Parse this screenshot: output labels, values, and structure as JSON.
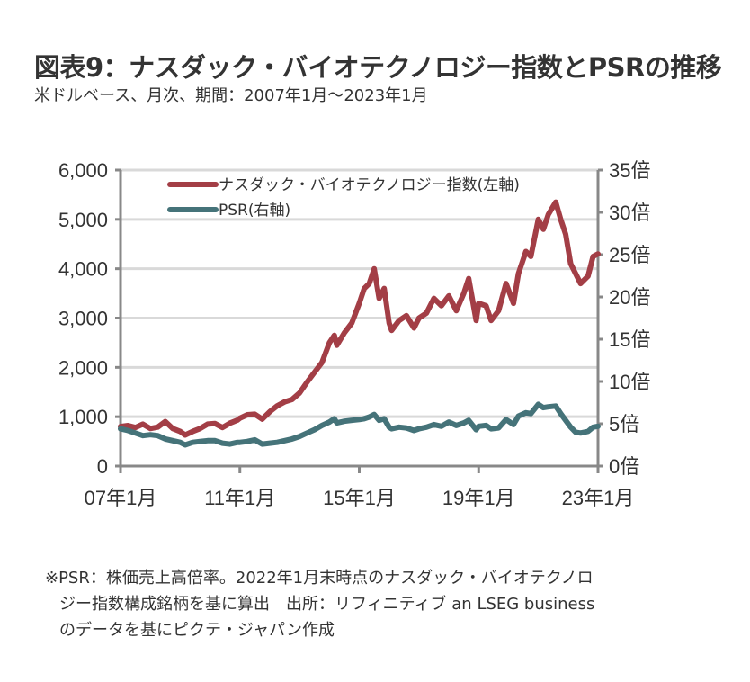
{
  "header": {
    "title": "図表9：ナスダック・バイオテクノロジー指数とPSRの推移",
    "subtitle": "米ドルベース、月次、期間：2007年1月～2023年1月"
  },
  "chart_data": {
    "type": "line",
    "title": "図表9：ナスダック・バイオテクノロジー指数とPSRの推移",
    "subtitle": "米ドルベース、月次、期間：2007年1月～2023年1月",
    "xlabel": "",
    "ylabel_left": "",
    "ylabel_right": "",
    "x_start": "2007-01",
    "x_end": "2023-01",
    "x_ticks": [
      "07年1月",
      "11年1月",
      "15年1月",
      "19年1月",
      "23年1月"
    ],
    "x_tick_months": [
      0,
      48,
      96,
      144,
      192
    ],
    "y_left_ticks": [
      "0",
      "1,000",
      "2,000",
      "3,000",
      "4,000",
      "5,000",
      "6,000"
    ],
    "y_left_tick_values": [
      0,
      1000,
      2000,
      3000,
      4000,
      5000,
      6000
    ],
    "ylim_left": [
      0,
      6000
    ],
    "y_right_ticks": [
      "0倍",
      "5倍",
      "10倍",
      "15倍",
      "20倍",
      "25倍",
      "30倍",
      "35倍"
    ],
    "y_right_tick_values": [
      0,
      5,
      10,
      15,
      20,
      25,
      30,
      35
    ],
    "ylim_right": [
      0,
      35
    ],
    "grid": true,
    "legend_position": "top-left",
    "series": [
      {
        "name": "ナスダック・バイオテクノロジー指数(左軸)",
        "axis": "left",
        "color": "#A33E46",
        "points": [
          [
            "2007-01",
            800
          ],
          [
            "2007-04",
            820
          ],
          [
            "2007-07",
            780
          ],
          [
            "2007-10",
            850
          ],
          [
            "2008-01",
            760
          ],
          [
            "2008-04",
            790
          ],
          [
            "2008-07",
            900
          ],
          [
            "2008-10",
            760
          ],
          [
            "2009-01",
            700
          ],
          [
            "2009-03",
            630
          ],
          [
            "2009-06",
            700
          ],
          [
            "2009-09",
            760
          ],
          [
            "2009-12",
            850
          ],
          [
            "2010-03",
            860
          ],
          [
            "2010-06",
            780
          ],
          [
            "2010-09",
            870
          ],
          [
            "2010-12",
            930
          ],
          [
            "2011-01",
            970
          ],
          [
            "2011-04",
            1040
          ],
          [
            "2011-07",
            1050
          ],
          [
            "2011-10",
            950
          ],
          [
            "2012-01",
            1100
          ],
          [
            "2012-04",
            1220
          ],
          [
            "2012-07",
            1300
          ],
          [
            "2012-10",
            1350
          ],
          [
            "2013-01",
            1480
          ],
          [
            "2013-04",
            1700
          ],
          [
            "2013-07",
            1900
          ],
          [
            "2013-10",
            2100
          ],
          [
            "2014-01",
            2500
          ],
          [
            "2014-03",
            2650
          ],
          [
            "2014-04",
            2450
          ],
          [
            "2014-07",
            2700
          ],
          [
            "2014-10",
            2900
          ],
          [
            "2015-01",
            3300
          ],
          [
            "2015-03",
            3600
          ],
          [
            "2015-05",
            3700
          ],
          [
            "2015-07",
            4000
          ],
          [
            "2015-09",
            3400
          ],
          [
            "2015-11",
            3600
          ],
          [
            "2016-01",
            2900
          ],
          [
            "2016-02",
            2750
          ],
          [
            "2016-05",
            2950
          ],
          [
            "2016-08",
            3050
          ],
          [
            "2016-11",
            2800
          ],
          [
            "2017-01",
            3000
          ],
          [
            "2017-04",
            3100
          ],
          [
            "2017-07",
            3400
          ],
          [
            "2017-10",
            3250
          ],
          [
            "2018-01",
            3450
          ],
          [
            "2018-04",
            3150
          ],
          [
            "2018-07",
            3500
          ],
          [
            "2018-09",
            3800
          ],
          [
            "2018-12",
            2950
          ],
          [
            "2019-01",
            3300
          ],
          [
            "2019-04",
            3250
          ],
          [
            "2019-06",
            2950
          ],
          [
            "2019-09",
            3150
          ],
          [
            "2019-12",
            3700
          ],
          [
            "2020-03",
            3300
          ],
          [
            "2020-05",
            3900
          ],
          [
            "2020-08",
            4350
          ],
          [
            "2020-10",
            4250
          ],
          [
            "2021-01",
            5000
          ],
          [
            "2021-03",
            4800
          ],
          [
            "2021-05",
            5100
          ],
          [
            "2021-08",
            5350
          ],
          [
            "2021-10",
            5000
          ],
          [
            "2021-12",
            4700
          ],
          [
            "2022-02",
            4100
          ],
          [
            "2022-04",
            3900
          ],
          [
            "2022-06",
            3700
          ],
          [
            "2022-09",
            3850
          ],
          [
            "2022-11",
            4250
          ],
          [
            "2023-01",
            4300
          ]
        ]
      },
      {
        "name": "PSR(右軸)",
        "axis": "right",
        "color": "#457379",
        "points": [
          [
            "2007-01",
            4.4
          ],
          [
            "2007-04",
            4.2
          ],
          [
            "2007-07",
            3.9
          ],
          [
            "2007-10",
            3.6
          ],
          [
            "2008-01",
            3.7
          ],
          [
            "2008-04",
            3.6
          ],
          [
            "2008-07",
            3.2
          ],
          [
            "2008-10",
            3.0
          ],
          [
            "2009-01",
            2.8
          ],
          [
            "2009-03",
            2.5
          ],
          [
            "2009-06",
            2.8
          ],
          [
            "2009-09",
            2.9
          ],
          [
            "2009-12",
            3.0
          ],
          [
            "2010-03",
            3.0
          ],
          [
            "2010-06",
            2.7
          ],
          [
            "2010-09",
            2.6
          ],
          [
            "2010-12",
            2.8
          ],
          [
            "2011-01",
            2.8
          ],
          [
            "2011-04",
            2.9
          ],
          [
            "2011-07",
            3.1
          ],
          [
            "2011-10",
            2.6
          ],
          [
            "2012-01",
            2.7
          ],
          [
            "2012-04",
            2.8
          ],
          [
            "2012-07",
            3.0
          ],
          [
            "2012-10",
            3.2
          ],
          [
            "2013-01",
            3.5
          ],
          [
            "2013-04",
            3.9
          ],
          [
            "2013-07",
            4.3
          ],
          [
            "2013-10",
            4.8
          ],
          [
            "2014-01",
            5.2
          ],
          [
            "2014-03",
            5.6
          ],
          [
            "2014-04",
            5.1
          ],
          [
            "2014-07",
            5.3
          ],
          [
            "2014-10",
            5.4
          ],
          [
            "2015-01",
            5.5
          ],
          [
            "2015-03",
            5.6
          ],
          [
            "2015-05",
            5.8
          ],
          [
            "2015-07",
            6.1
          ],
          [
            "2015-09",
            5.4
          ],
          [
            "2015-11",
            5.6
          ],
          [
            "2016-01",
            4.6
          ],
          [
            "2016-02",
            4.4
          ],
          [
            "2016-05",
            4.6
          ],
          [
            "2016-08",
            4.5
          ],
          [
            "2016-11",
            4.2
          ],
          [
            "2017-01",
            4.4
          ],
          [
            "2017-04",
            4.6
          ],
          [
            "2017-07",
            4.9
          ],
          [
            "2017-10",
            4.7
          ],
          [
            "2018-01",
            5.2
          ],
          [
            "2018-04",
            4.8
          ],
          [
            "2018-07",
            5.1
          ],
          [
            "2018-09",
            5.4
          ],
          [
            "2018-12",
            4.3
          ],
          [
            "2019-01",
            4.7
          ],
          [
            "2019-04",
            4.8
          ],
          [
            "2019-06",
            4.4
          ],
          [
            "2019-09",
            4.5
          ],
          [
            "2019-12",
            5.5
          ],
          [
            "2020-03",
            4.9
          ],
          [
            "2020-05",
            5.9
          ],
          [
            "2020-08",
            6.3
          ],
          [
            "2020-10",
            6.2
          ],
          [
            "2021-01",
            7.3
          ],
          [
            "2021-03",
            6.9
          ],
          [
            "2021-05",
            7.0
          ],
          [
            "2021-08",
            7.1
          ],
          [
            "2021-10",
            6.2
          ],
          [
            "2021-12",
            5.4
          ],
          [
            "2022-02",
            4.6
          ],
          [
            "2022-04",
            4.0
          ],
          [
            "2022-06",
            3.9
          ],
          [
            "2022-09",
            4.1
          ],
          [
            "2022-11",
            4.6
          ],
          [
            "2023-01",
            4.7
          ]
        ]
      }
    ]
  },
  "legend": {
    "items": [
      {
        "label": "ナスダック・バイオテクノロジー指数(左軸)",
        "color": "#A33E46"
      },
      {
        "label": "PSR(右軸)",
        "color": "#457379"
      }
    ]
  },
  "notes": {
    "line1": "※PSR：株価売上高倍率。2022年1月末時点のナスダック・バイオテクノロ",
    "line2": "ジー指数構成銘柄を基に算出　出所：リフィニティブ an LSEG business",
    "line3": "のデータを基にピクテ・ジャパン作成"
  }
}
